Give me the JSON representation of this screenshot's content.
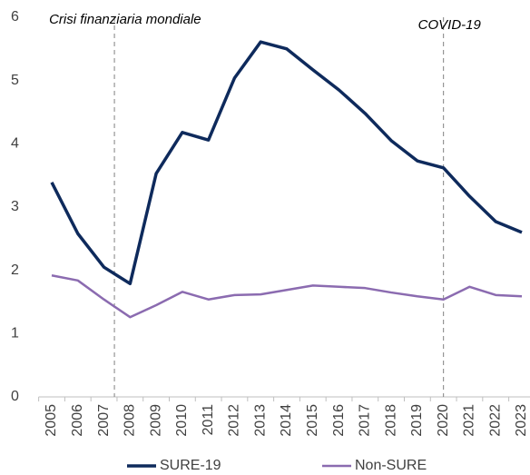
{
  "chart_data": {
    "type": "line",
    "x": [
      2005,
      2006,
      2007,
      2008,
      2009,
      2010,
      2011,
      2012,
      2013,
      2014,
      2015,
      2016,
      2017,
      2018,
      2019,
      2020,
      2021,
      2022,
      2023
    ],
    "series": [
      {
        "name": "SURE-19",
        "color": "#0e2a5c",
        "values": [
          3.39,
          2.58,
          2.05,
          1.79,
          3.53,
          4.18,
          4.06,
          5.04,
          5.61,
          5.5,
          5.17,
          4.85,
          4.48,
          4.05,
          3.73,
          3.62,
          3.17,
          2.77,
          2.6
        ]
      },
      {
        "name": "Non-SURE",
        "color": "#8b6bb0",
        "values": [
          1.92,
          1.84,
          1.54,
          1.26,
          1.45,
          1.66,
          1.54,
          1.61,
          1.62,
          1.69,
          1.76,
          1.74,
          1.72,
          1.65,
          1.59,
          1.54,
          1.74,
          1.61,
          1.59
        ]
      }
    ],
    "xlim": [
      2005,
      2023
    ],
    "xticks": [
      2005,
      2006,
      2007,
      2008,
      2009,
      2010,
      2011,
      2012,
      2013,
      2014,
      2015,
      2016,
      2017,
      2018,
      2019,
      2020,
      2021,
      2022,
      2023
    ],
    "ylim": [
      0,
      6
    ],
    "yticks": [
      0,
      1,
      2,
      3,
      4,
      5,
      6
    ],
    "annotations": [
      {
        "text": "Crisi finanziaria mondiale",
        "x": 2007.4
      },
      {
        "text": "COVID-19",
        "x": 2020
      }
    ]
  }
}
